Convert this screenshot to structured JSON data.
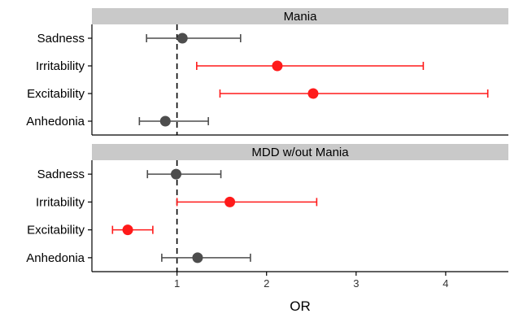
{
  "chart_data": {
    "type": "forest",
    "xlabel": "OR",
    "xlim": [
      0.05,
      4.7
    ],
    "xticks": [
      1,
      2,
      3,
      4
    ],
    "reference_line": 1,
    "colors": {
      "significant": "#ff1a1a",
      "nonsignificant": "#4d4d4d"
    },
    "panels": [
      {
        "title": "Mania",
        "categories": [
          "Sadness",
          "Irritability",
          "Excitability",
          "Anhedonia"
        ],
        "estimates": [
          1.06,
          2.12,
          2.52,
          0.87
        ],
        "lower": [
          0.66,
          1.22,
          1.48,
          0.58
        ],
        "upper": [
          1.71,
          3.75,
          4.47,
          1.35
        ],
        "significant": [
          false,
          true,
          true,
          false
        ]
      },
      {
        "title": "MDD w/out Mania",
        "categories": [
          "Sadness",
          "Irritability",
          "Excitability",
          "Anhedonia"
        ],
        "estimates": [
          0.99,
          1.59,
          0.45,
          1.23
        ],
        "lower": [
          0.67,
          1.0,
          0.28,
          0.83
        ],
        "upper": [
          1.49,
          2.56,
          0.73,
          1.82
        ],
        "significant": [
          false,
          true,
          true,
          false
        ]
      }
    ]
  }
}
